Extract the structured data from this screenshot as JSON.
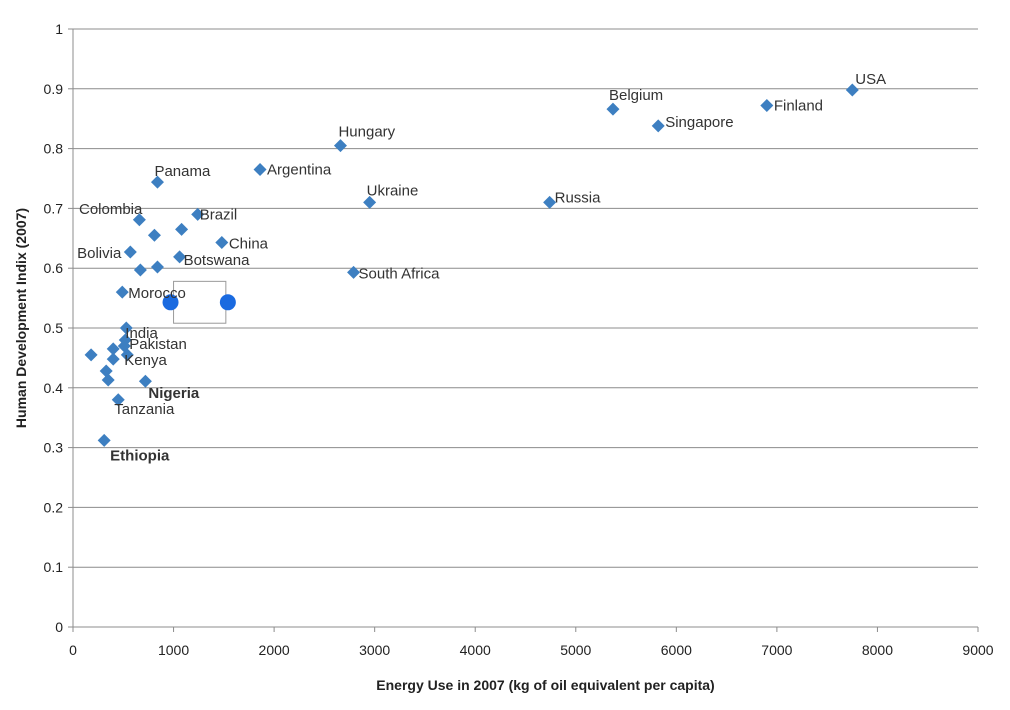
{
  "chart_data": {
    "type": "scatter",
    "title": "",
    "xlabel": "Energy Use in 2007 (kg of oil equivalent per capita)",
    "ylabel": "Human Development Indix (2007)",
    "xlim": [
      0,
      9000
    ],
    "ylim": [
      0,
      1
    ],
    "x_ticks": [
      "0",
      "1000",
      "2000",
      "3000",
      "4000",
      "5000",
      "6000",
      "7000",
      "8000",
      "9000"
    ],
    "y_ticks": [
      "0",
      "0.1",
      "0.2",
      "0.3",
      "0.4",
      "0.5",
      "0.6",
      "0.7",
      "0.8",
      "0.9",
      "1"
    ],
    "grid": true,
    "marker_color": "#3d7fc1",
    "highlight_color": "#1a6ae0",
    "points": [
      {
        "label": "USA",
        "x": 7750,
        "y": 0.898
      },
      {
        "label": "Finland",
        "x": 6900,
        "y": 0.872
      },
      {
        "label": "Belgium",
        "x": 5370,
        "y": 0.866
      },
      {
        "label": "Singapore",
        "x": 5820,
        "y": 0.838
      },
      {
        "label": "Hungary",
        "x": 2660,
        "y": 0.805
      },
      {
        "label": "Argentina",
        "x": 1860,
        "y": 0.765
      },
      {
        "label": "Panama",
        "x": 840,
        "y": 0.744
      },
      {
        "label": "Ukraine",
        "x": 2950,
        "y": 0.71
      },
      {
        "label": "Russia",
        "x": 4740,
        "y": 0.71
      },
      {
        "label": "Colombia",
        "x": 660,
        "y": 0.681
      },
      {
        "label": "Brazil",
        "x": 1240,
        "y": 0.69
      },
      {
        "label": "",
        "x": 1080,
        "y": 0.665
      },
      {
        "label": "",
        "x": 810,
        "y": 0.655
      },
      {
        "label": "China",
        "x": 1480,
        "y": 0.643
      },
      {
        "label": "Bolivia",
        "x": 570,
        "y": 0.627
      },
      {
        "label": "Botswana",
        "x": 1060,
        "y": 0.619
      },
      {
        "label": "",
        "x": 840,
        "y": 0.602
      },
      {
        "label": "",
        "x": 670,
        "y": 0.597
      },
      {
        "label": "South Africa",
        "x": 2790,
        "y": 0.593
      },
      {
        "label": "Morocco",
        "x": 490,
        "y": 0.56
      },
      {
        "label": "India",
        "x": 530,
        "y": 0.5
      },
      {
        "label": "",
        "x": 520,
        "y": 0.48
      },
      {
        "label": "Pakistan",
        "x": 510,
        "y": 0.47
      },
      {
        "label": "",
        "x": 400,
        "y": 0.465
      },
      {
        "label": "Kenya",
        "x": 540,
        "y": 0.455
      },
      {
        "label": "",
        "x": 180,
        "y": 0.455
      },
      {
        "label": "",
        "x": 400,
        "y": 0.448
      },
      {
        "label": "",
        "x": 330,
        "y": 0.428
      },
      {
        "label": "",
        "x": 350,
        "y": 0.413
      },
      {
        "label": "Nigeria",
        "x": 720,
        "y": 0.411
      },
      {
        "label": "Tanzania",
        "x": 450,
        "y": 0.38
      },
      {
        "label": "Ethiopia",
        "x": 310,
        "y": 0.312
      }
    ],
    "highlight_points": [
      {
        "x": 970,
        "y": 0.543
      },
      {
        "x": 1540,
        "y": 0.543
      }
    ]
  }
}
